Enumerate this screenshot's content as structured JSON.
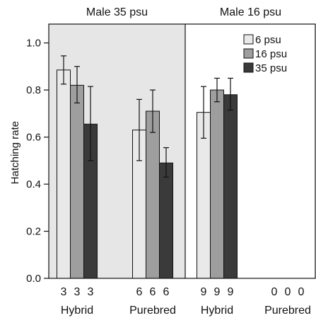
{
  "chart_data": {
    "type": "bar",
    "ylabel": "Hatching rate",
    "ylim": [
      0,
      1.08
    ],
    "yticks": [
      "0.0",
      "0.2",
      "0.4",
      "0.6",
      "0.8",
      "1.0"
    ],
    "ytick_values": [
      0,
      0.2,
      0.4,
      0.6,
      0.8,
      1.0
    ],
    "legend": {
      "placement": "top-right",
      "entries": [
        "6 psu",
        "16 psu",
        "35 psu"
      ]
    },
    "colors": {
      "6 psu": "#e9e9e9",
      "16 psu": "#9e9e9e",
      "35 psu": "#3a3a3a",
      "panel_shade": "#e6e6e6"
    },
    "panels": [
      {
        "title": "Male 35 psu",
        "shaded": true,
        "groups": [
          {
            "label": "Hybrid",
            "series": [
              {
                "name": "6 psu",
                "value": 0.885,
                "err_low": 0.825,
                "err_high": 0.945,
                "n": "3"
              },
              {
                "name": "16 psu",
                "value": 0.82,
                "err_low": 0.745,
                "err_high": 0.9,
                "n": "3"
              },
              {
                "name": "35 psu",
                "value": 0.655,
                "err_low": 0.5,
                "err_high": 0.815,
                "n": "3"
              }
            ]
          },
          {
            "label": "Purebred",
            "series": [
              {
                "name": "6 psu",
                "value": 0.63,
                "err_low": 0.5,
                "err_high": 0.76,
                "n": "6"
              },
              {
                "name": "16 psu",
                "value": 0.71,
                "err_low": 0.62,
                "err_high": 0.8,
                "n": "6"
              },
              {
                "name": "35 psu",
                "value": 0.49,
                "err_low": 0.43,
                "err_high": 0.555,
                "n": "6"
              }
            ]
          }
        ]
      },
      {
        "title": "Male 16 psu",
        "shaded": false,
        "groups": [
          {
            "label": "Hybrid",
            "series": [
              {
                "name": "6 psu",
                "value": 0.705,
                "err_low": 0.595,
                "err_high": 0.815,
                "n": "9"
              },
              {
                "name": "16 psu",
                "value": 0.8,
                "err_low": 0.75,
                "err_high": 0.85,
                "n": "9"
              },
              {
                "name": "35 psu",
                "value": 0.78,
                "err_low": 0.715,
                "err_high": 0.85,
                "n": "9"
              }
            ]
          },
          {
            "label": "Purebred",
            "series": [
              {
                "name": "6 psu",
                "value": null,
                "n": "0"
              },
              {
                "name": "16 psu",
                "value": null,
                "n": "0"
              },
              {
                "name": "35 psu",
                "value": null,
                "n": "0"
              }
            ]
          }
        ]
      }
    ]
  }
}
